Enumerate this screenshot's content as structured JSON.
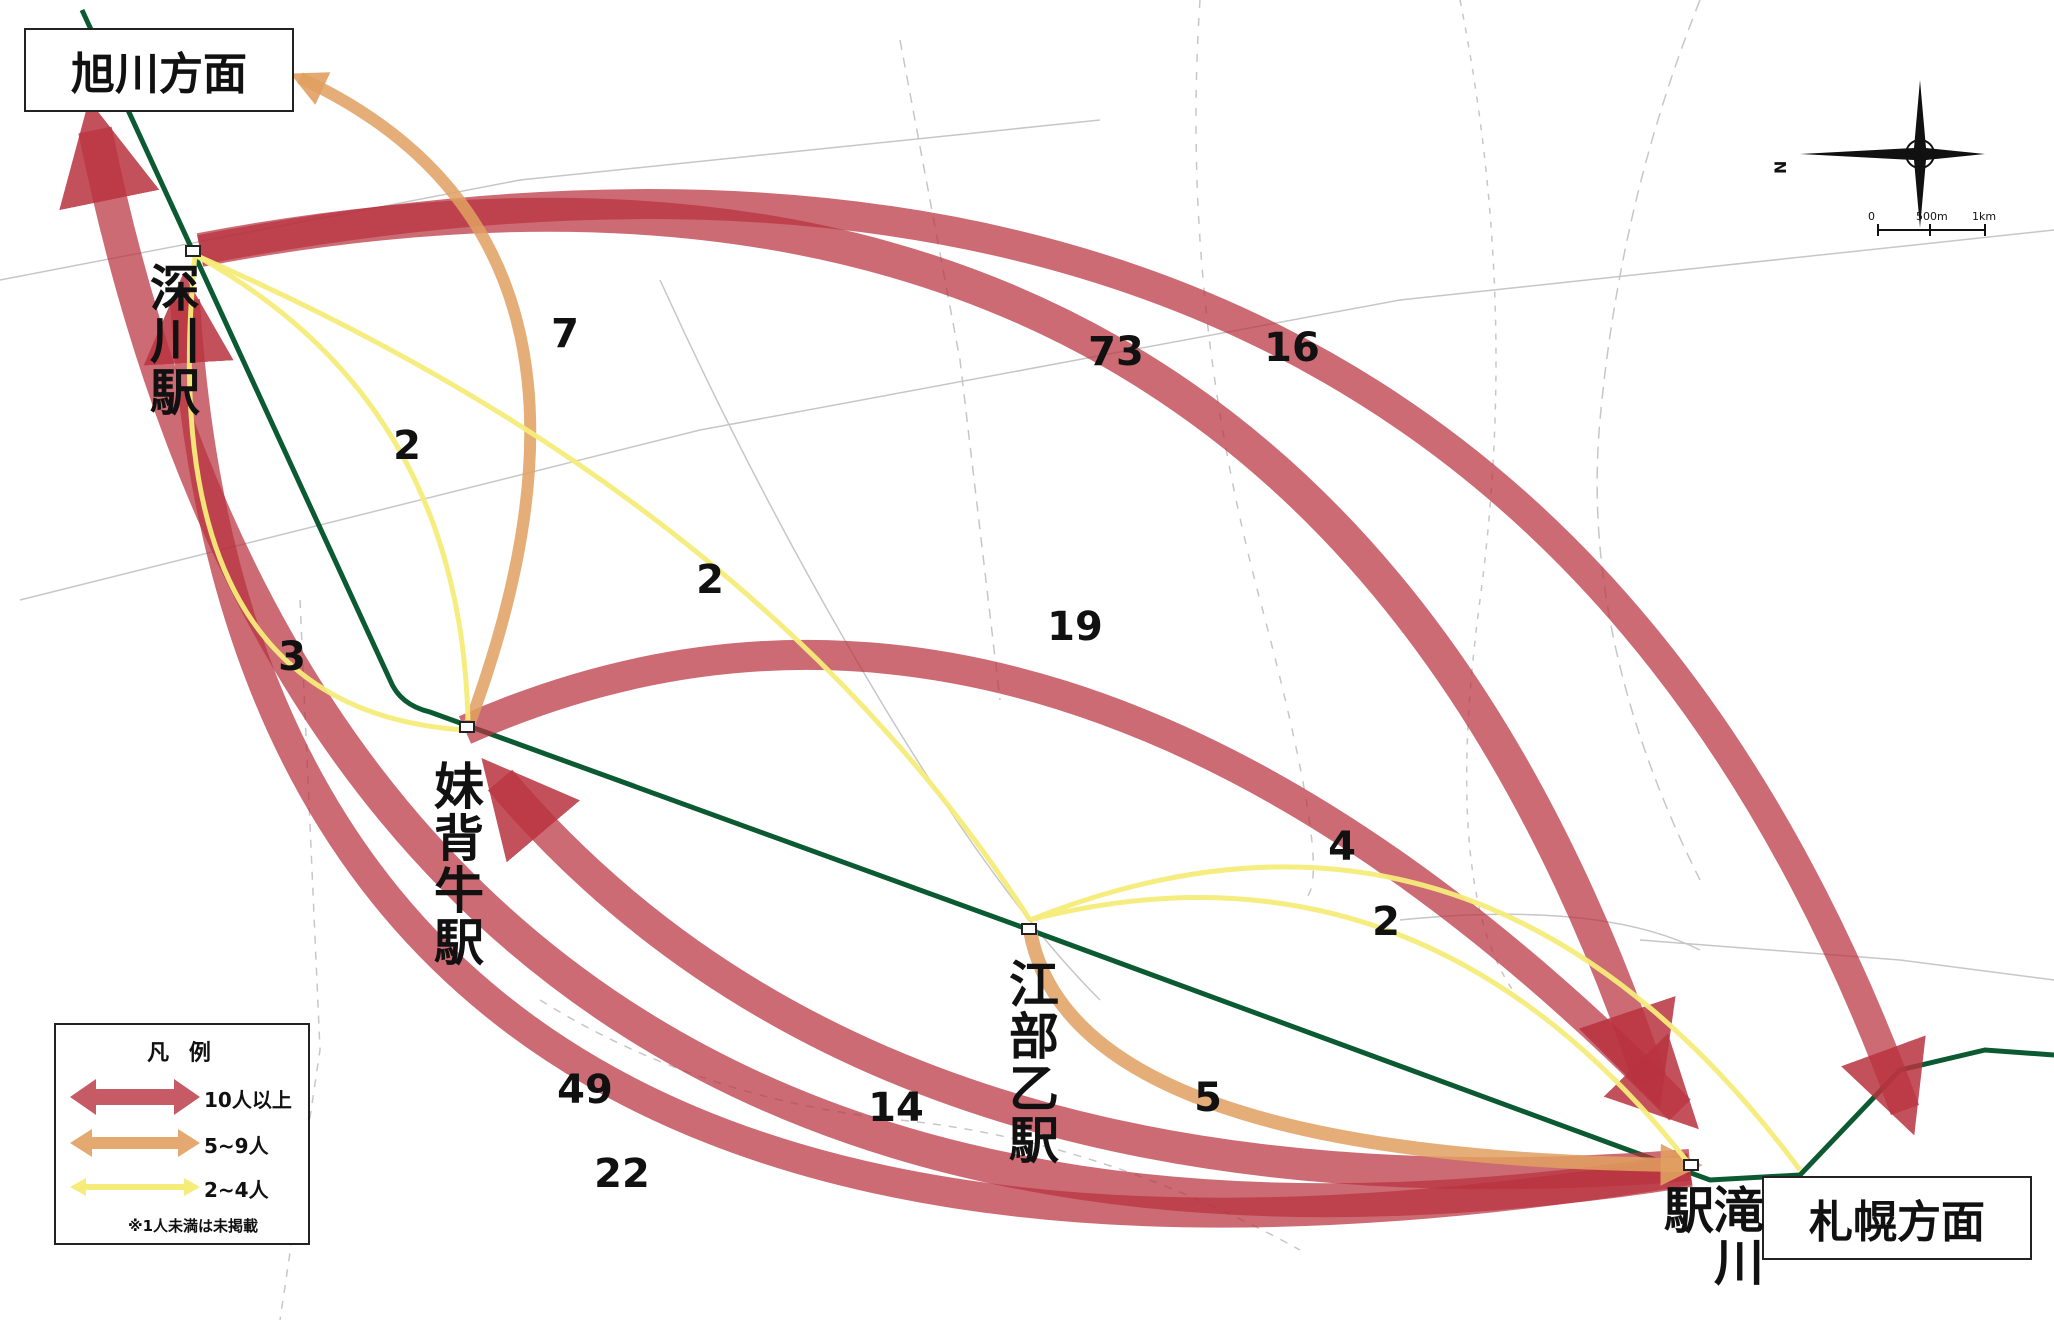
{
  "stations": {
    "fukagawa": "深川駅",
    "moseushi": "妹背牛駅",
    "ebeotsu": "江部乙駅",
    "takikawa": "滝川駅"
  },
  "destinations": {
    "asahikawa": "旭川方面",
    "sapporo": "札幌方面"
  },
  "flows": [
    {
      "from": "深川駅",
      "to": "滝川駅",
      "count": "73",
      "class": "10人以上"
    },
    {
      "from": "深川駅",
      "to": "札幌方面",
      "count": "16",
      "class": "10人以上"
    },
    {
      "from": "妹背牛駅",
      "to": "滝川駅",
      "count": "19",
      "class": "10人以上"
    },
    {
      "from": "滝川駅",
      "to": "旭川方面",
      "count": "49",
      "class": "10人以上"
    },
    {
      "from": "滝川駅",
      "to": "深川駅",
      "count": "22",
      "class": "10人以上"
    },
    {
      "from": "滝川駅",
      "to": "妹背牛駅",
      "count": "14",
      "class": "10人以上"
    },
    {
      "from": "妹背牛駅",
      "to": "旭川方面",
      "count": "7",
      "class": "5~9人"
    },
    {
      "from": "江部乙駅",
      "to": "滝川駅",
      "count": "5",
      "class": "5~9人"
    },
    {
      "from": "深川駅",
      "to": "妹背牛駅",
      "count": "2",
      "class": "2~4人"
    },
    {
      "from": "深川駅",
      "to": "江部乙駅",
      "count": "2",
      "class": "2~4人"
    },
    {
      "from": "深川駅",
      "to": "妹背牛駅",
      "count": "3",
      "class": "2~4人"
    },
    {
      "from": "江部乙駅",
      "to": "札幌方面",
      "count": "4",
      "class": "2~4人"
    },
    {
      "from": "江部乙駅",
      "to": "滝川駅",
      "count": "2",
      "class": "2~4人"
    }
  ],
  "legend": {
    "title": "凡 例",
    "items": [
      {
        "label": "10人以上",
        "color": "#b8323f"
      },
      {
        "label": "5~9人",
        "color": "#e0a060"
      },
      {
        "label": "2~4人",
        "color": "#f5ec7a"
      }
    ],
    "note": "※1人未満は未掲載"
  },
  "colors": {
    "major": "#b8323f",
    "medium": "#e0a060",
    "minor": "#f5ec7a",
    "railway": "#0b5a32"
  },
  "compass": {
    "north_label": "N",
    "scale_labels": [
      "0",
      "500m",
      "1km"
    ]
  }
}
